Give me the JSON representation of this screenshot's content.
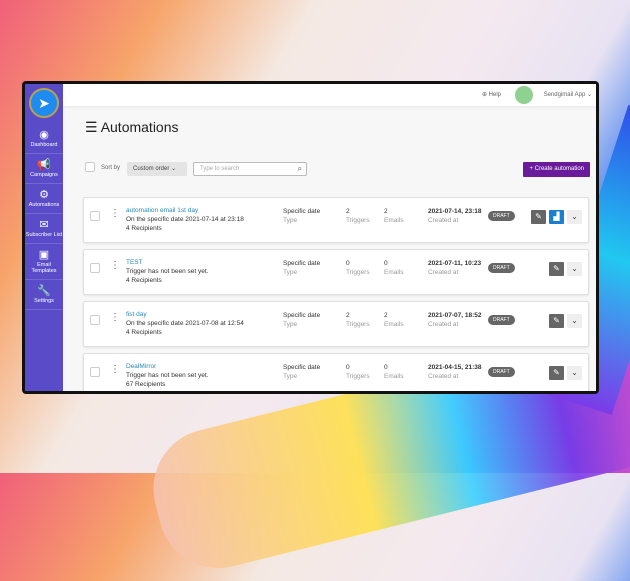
{
  "sidebar": {
    "items": [
      {
        "label": "Dashboard",
        "icon": "speedometer-icon"
      },
      {
        "label": "Campaigns",
        "icon": "megaphone-icon"
      },
      {
        "label": "Automations",
        "icon": "gears-icon"
      },
      {
        "label": "Subscriber List",
        "icon": "envelope-icon"
      },
      {
        "label": "Email Templates",
        "icon": "template-icon"
      },
      {
        "label": "Settings",
        "icon": "wrench-icon"
      }
    ]
  },
  "header": {
    "help": "Help",
    "account": "Sendgimail App"
  },
  "page": {
    "title": "Automations"
  },
  "toolbar": {
    "sort_label": "Sort by",
    "sort_value": "Custom order",
    "search_placeholder": "Type to search",
    "create": "+ Create automation"
  },
  "rows": [
    {
      "name": "automation email 1st day",
      "desc": "On the specific date 2021-07-14 at 23:18",
      "recipients": "4 Recipients",
      "type": "Specific date",
      "type_label": "Type",
      "triggers": "2",
      "triggers_label": "Triggers",
      "emails": "2",
      "emails_label": "Emails",
      "created": "2021-07-14, 23:18",
      "created_label": "Created at",
      "status": "DRAFT"
    },
    {
      "name": "TEST",
      "desc": "Trigger has not been set yet.",
      "recipients": "4 Recipients",
      "type": "Specific date",
      "type_label": "Type",
      "triggers": "0",
      "triggers_label": "Triggers",
      "emails": "0",
      "emails_label": "Emails",
      "created": "2021-07-11, 10:23",
      "created_label": "Created at",
      "status": "DRAFT"
    },
    {
      "name": "fist day",
      "desc": "On the specific date 2021-07-08 at 12:54",
      "recipients": "4 Recipients",
      "type": "Specific date",
      "type_label": "Type",
      "triggers": "2",
      "triggers_label": "Triggers",
      "emails": "2",
      "emails_label": "Emails",
      "created": "2021-07-07, 18:52",
      "created_label": "Created at",
      "status": "DRAFT"
    },
    {
      "name": "DealMirror",
      "desc": "Trigger has not been set yet.",
      "recipients": "67 Recipients",
      "type": "Specific date",
      "type_label": "Type",
      "triggers": "0",
      "triggers_label": "Triggers",
      "emails": "0",
      "emails_label": "Emails",
      "created": "2021-04-15, 21:38",
      "created_label": "Created at",
      "status": "DRAFT"
    }
  ]
}
